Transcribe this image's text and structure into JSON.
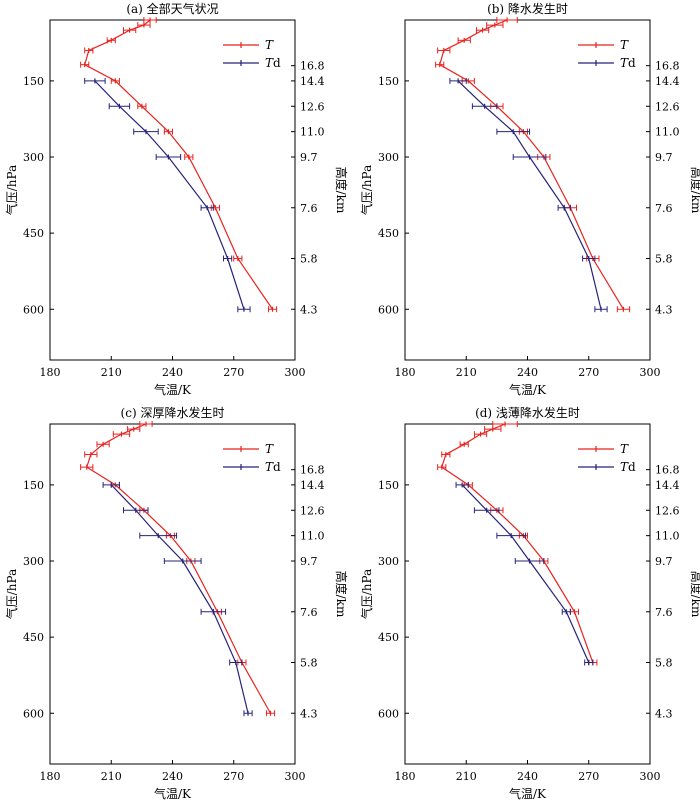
{
  "colors": {
    "T": "#e8231f",
    "Td": "#26237a"
  },
  "chart_data": [
    {
      "type": "line",
      "title": "(a) 全部天气状况",
      "xlabel": "气温/K",
      "ylabel": "气压/hPa",
      "y2label": "高度/km",
      "xlim": [
        180,
        300
      ],
      "ylim": [
        30,
        700
      ],
      "xticks": [
        "180",
        "210",
        "240",
        "270",
        "300"
      ],
      "yticks": [
        "150",
        "300",
        "450",
        "600"
      ],
      "height_ticks": [
        {
          "p": 120,
          "label": "16.8"
        },
        {
          "p": 150,
          "label": "14.4"
        },
        {
          "p": 200,
          "label": "12.6"
        },
        {
          "p": 250,
          "label": "11.0"
        },
        {
          "p": 300,
          "label": "9.7"
        },
        {
          "p": 400,
          "label": "7.6"
        },
        {
          "p": 500,
          "label": "5.8"
        },
        {
          "p": 600,
          "label": "4.3"
        }
      ],
      "series": [
        {
          "name": "T",
          "color": "#e8231f",
          "points": [
            {
              "t": 229,
              "p": 30,
              "e": 3
            },
            {
              "t": 226,
              "p": 40,
              "e": 3
            },
            {
              "t": 219,
              "p": 50,
              "e": 3
            },
            {
              "t": 210,
              "p": 70,
              "e": 2
            },
            {
              "t": 199,
              "p": 90,
              "e": 2
            },
            {
              "t": 197,
              "p": 118,
              "e": 2
            },
            {
              "t": 212,
              "p": 150,
              "e": 2
            },
            {
              "t": 225,
              "p": 200,
              "e": 2
            },
            {
              "t": 238,
              "p": 250,
              "e": 2
            },
            {
              "t": 248,
              "p": 300,
              "e": 2
            },
            {
              "t": 261,
              "p": 400,
              "e": 2
            },
            {
              "t": 272,
              "p": 500,
              "e": 2
            },
            {
              "t": 289,
              "p": 600,
              "e": 2
            }
          ]
        },
        {
          "name": "Td",
          "color": "#26237a",
          "points": [
            {
              "t": 202,
              "p": 150,
              "e": 5
            },
            {
              "t": 214,
              "p": 200,
              "e": 5
            },
            {
              "t": 227,
              "p": 250,
              "e": 6
            },
            {
              "t": 238,
              "p": 300,
              "e": 6
            },
            {
              "t": 257,
              "p": 400,
              "e": 3
            },
            {
              "t": 267,
              "p": 500,
              "e": 2
            },
            {
              "t": 275,
              "p": 600,
              "e": 3
            }
          ]
        }
      ]
    },
    {
      "type": "line",
      "title": "(b) 降水发生时",
      "xlabel": "气温/K",
      "ylabel": "气压/hPa",
      "y2label": "高度/km",
      "xlim": [
        180,
        300
      ],
      "ylim": [
        30,
        700
      ],
      "xticks": [
        "180",
        "210",
        "240",
        "270",
        "300"
      ],
      "yticks": [
        "150",
        "300",
        "450",
        "600"
      ],
      "height_ticks": [
        {
          "p": 120,
          "label": "16.8"
        },
        {
          "p": 150,
          "label": "14.4"
        },
        {
          "p": 200,
          "label": "12.6"
        },
        {
          "p": 250,
          "label": "11.0"
        },
        {
          "p": 300,
          "label": "9.7"
        },
        {
          "p": 400,
          "label": "7.6"
        },
        {
          "p": 500,
          "label": "5.8"
        },
        {
          "p": 600,
          "label": "4.3"
        }
      ],
      "series": [
        {
          "name": "T",
          "color": "#e8231f",
          "points": [
            {
              "t": 230,
              "p": 30,
              "e": 5
            },
            {
              "t": 224,
              "p": 40,
              "e": 4
            },
            {
              "t": 218,
              "p": 50,
              "e": 3
            },
            {
              "t": 209,
              "p": 70,
              "e": 3
            },
            {
              "t": 199,
              "p": 90,
              "e": 3
            },
            {
              "t": 197,
              "p": 118,
              "e": 2
            },
            {
              "t": 211,
              "p": 150,
              "e": 3
            },
            {
              "t": 225,
              "p": 200,
              "e": 3
            },
            {
              "t": 238,
              "p": 250,
              "e": 2
            },
            {
              "t": 248,
              "p": 300,
              "e": 3
            },
            {
              "t": 261,
              "p": 400,
              "e": 3
            },
            {
              "t": 272,
              "p": 500,
              "e": 3
            },
            {
              "t": 287,
              "p": 600,
              "e": 3
            }
          ]
        },
        {
          "name": "Td",
          "color": "#26237a",
          "points": [
            {
              "t": 206,
              "p": 150,
              "e": 4
            },
            {
              "t": 219,
              "p": 200,
              "e": 6
            },
            {
              "t": 233,
              "p": 250,
              "e": 8
            },
            {
              "t": 241,
              "p": 300,
              "e": 8
            },
            {
              "t": 258,
              "p": 400,
              "e": 3
            },
            {
              "t": 270,
              "p": 500,
              "e": 3
            },
            {
              "t": 276,
              "p": 600,
              "e": 3
            }
          ]
        }
      ]
    },
    {
      "type": "line",
      "title": "(c) 深厚降水发生时",
      "xlabel": "气温/K",
      "ylabel": "气压/hPa",
      "y2label": "高度/km",
      "xlim": [
        180,
        300
      ],
      "ylim": [
        30,
        700
      ],
      "xticks": [
        "180",
        "210",
        "240",
        "270",
        "300"
      ],
      "yticks": [
        "150",
        "300",
        "450",
        "600"
      ],
      "height_ticks": [
        {
          "p": 120,
          "label": "16.8"
        },
        {
          "p": 150,
          "label": "14.4"
        },
        {
          "p": 200,
          "label": "12.6"
        },
        {
          "p": 250,
          "label": "11.0"
        },
        {
          "p": 300,
          "label": "9.7"
        },
        {
          "p": 400,
          "label": "7.6"
        },
        {
          "p": 500,
          "label": "5.8"
        },
        {
          "p": 600,
          "label": "4.3"
        }
      ],
      "series": [
        {
          "name": "T",
          "color": "#e8231f",
          "points": [
            {
              "t": 227,
              "p": 30,
              "e": 3
            },
            {
              "t": 221,
              "p": 40,
              "e": 3
            },
            {
              "t": 215,
              "p": 50,
              "e": 4
            },
            {
              "t": 206,
              "p": 70,
              "e": 3
            },
            {
              "t": 200,
              "p": 90,
              "e": 3
            },
            {
              "t": 198,
              "p": 115,
              "e": 3
            },
            {
              "t": 212,
              "p": 150,
              "e": 2
            },
            {
              "t": 226,
              "p": 200,
              "e": 2
            },
            {
              "t": 239,
              "p": 250,
              "e": 2
            },
            {
              "t": 249,
              "p": 300,
              "e": 2
            },
            {
              "t": 262,
              "p": 400,
              "e": 2
            },
            {
              "t": 274,
              "p": 500,
              "e": 2
            },
            {
              "t": 288,
              "p": 600,
              "e": 2
            }
          ]
        },
        {
          "name": "Td",
          "color": "#26237a",
          "points": [
            {
              "t": 210,
              "p": 150,
              "e": 4
            },
            {
              "t": 222,
              "p": 200,
              "e": 6
            },
            {
              "t": 233,
              "p": 250,
              "e": 9
            },
            {
              "t": 245,
              "p": 300,
              "e": 9
            },
            {
              "t": 260,
              "p": 400,
              "e": 6
            },
            {
              "t": 271,
              "p": 500,
              "e": 3
            },
            {
              "t": 277,
              "p": 600,
              "e": 2
            }
          ]
        }
      ]
    },
    {
      "type": "line",
      "title": "(d) 浅薄降水发生时",
      "xlabel": "气温/K",
      "ylabel": "气压/hPa",
      "y2label": "高度/km",
      "xlim": [
        180,
        300
      ],
      "ylim": [
        30,
        700
      ],
      "xticks": [
        "180",
        "210",
        "240",
        "270",
        "300"
      ],
      "yticks": [
        "150",
        "300",
        "450",
        "600"
      ],
      "height_ticks": [
        {
          "p": 120,
          "label": "16.8"
        },
        {
          "p": 150,
          "label": "14.4"
        },
        {
          "p": 200,
          "label": "12.6"
        },
        {
          "p": 250,
          "label": "11.0"
        },
        {
          "p": 300,
          "label": "9.7"
        },
        {
          "p": 400,
          "label": "7.6"
        },
        {
          "p": 500,
          "label": "5.8"
        },
        {
          "p": 600,
          "label": "4.3"
        }
      ],
      "series": [
        {
          "name": "T",
          "color": "#e8231f",
          "points": [
            {
              "t": 229,
              "p": 30,
              "e": 6
            },
            {
              "t": 223,
              "p": 40,
              "e": 4
            },
            {
              "t": 217,
              "p": 50,
              "e": 3
            },
            {
              "t": 209,
              "p": 70,
              "e": 2
            },
            {
              "t": 200,
              "p": 90,
              "e": 2
            },
            {
              "t": 198,
              "p": 115,
              "e": 2
            },
            {
              "t": 211,
              "p": 150,
              "e": 2
            },
            {
              "t": 225,
              "p": 200,
              "e": 3
            },
            {
              "t": 238,
              "p": 250,
              "e": 2
            },
            {
              "t": 248,
              "p": 300,
              "e": 2
            },
            {
              "t": 263,
              "p": 400,
              "e": 2
            },
            {
              "t": 272,
              "p": 500,
              "e": 2
            }
          ]
        },
        {
          "name": "Td",
          "color": "#26237a",
          "points": [
            {
              "t": 208,
              "p": 150,
              "e": 3
            },
            {
              "t": 220,
              "p": 200,
              "e": 6
            },
            {
              "t": 232,
              "p": 250,
              "e": 7
            },
            {
              "t": 241,
              "p": 300,
              "e": 7
            },
            {
              "t": 259,
              "p": 400,
              "e": 2
            },
            {
              "t": 270,
              "p": 500,
              "e": 2
            }
          ]
        }
      ]
    }
  ]
}
